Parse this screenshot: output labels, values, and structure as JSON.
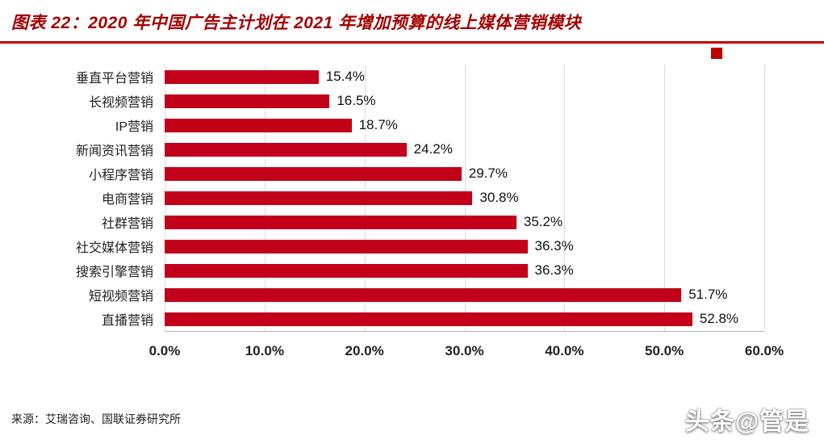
{
  "header": {
    "title": "图表 22：2020 年中国广告主计划在 2021 年增加预算的线上媒体营销模块",
    "accent_color": "#c00000"
  },
  "chart_data": {
    "type": "bar",
    "orientation": "horizontal",
    "title": "2020 年中国广告主计划在 2021 年增加预算的线上媒体营销模块",
    "categories": [
      "垂直平台营销",
      "长视频营销",
      "IP营销",
      "新闻资讯营销",
      "小程序营销",
      "电商营销",
      "社群营销",
      "社交媒体营销",
      "搜索引擎营销",
      "短视频营销",
      "直播营销"
    ],
    "values": [
      15.4,
      16.5,
      18.7,
      24.2,
      29.7,
      30.8,
      35.2,
      36.3,
      36.3,
      51.7,
      52.8
    ],
    "value_labels": [
      "15.4%",
      "16.5%",
      "18.7%",
      "24.2%",
      "29.7%",
      "30.8%",
      "35.2%",
      "36.3%",
      "36.3%",
      "51.7%",
      "52.8%"
    ],
    "x_ticks": [
      "0.0%",
      "10.0%",
      "20.0%",
      "30.0%",
      "40.0%",
      "50.0%",
      "60.0%"
    ],
    "xlim": [
      0,
      60
    ],
    "xlabel": "",
    "ylabel": "",
    "grid": true,
    "bar_color": "#c2001a",
    "legend": "none"
  },
  "footer": {
    "source": "来源：艾瑞咨询、国联证券研究所"
  },
  "watermark": {
    "text": "头条@管是"
  }
}
